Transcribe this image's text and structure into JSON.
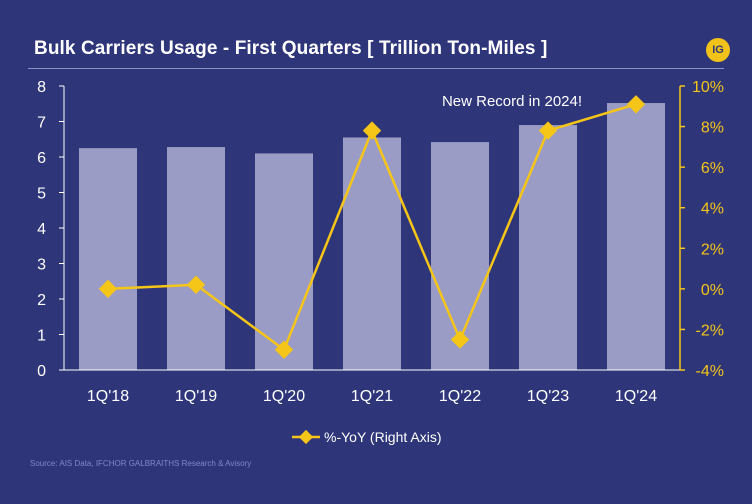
{
  "chart_data": {
    "type": "bar",
    "title": "Bulk Carriers Usage - First Quarters [ Trillion Ton-Miles ]",
    "categories": [
      "1Q'18",
      "1Q'19",
      "1Q'20",
      "1Q'21",
      "1Q'22",
      "1Q'23",
      "1Q'24"
    ],
    "series": [
      {
        "kind": "bar",
        "axis": "left",
        "values": [
          6.25,
          6.28,
          6.1,
          6.55,
          6.42,
          6.9,
          7.52
        ],
        "color": "#9a9cc6"
      },
      {
        "kind": "line",
        "axis": "right",
        "name": "%-YoY (Right Axis)",
        "values": [
          0.0,
          0.2,
          -3.0,
          7.8,
          -2.5,
          7.8,
          9.1
        ],
        "color": "#f5c518"
      }
    ],
    "y_left": {
      "min": 0,
      "max": 8,
      "ticks": [
        "0",
        "1",
        "2",
        "3",
        "4",
        "5",
        "6",
        "7",
        "8"
      ]
    },
    "y_right": {
      "min": -4,
      "max": 10,
      "ticks": [
        "-4%",
        "-2%",
        "0%",
        "2%",
        "4%",
        "6%",
        "8%",
        "10%"
      ]
    },
    "grid": false,
    "legend": "bottom-center",
    "annotation": "New Record in 2024!"
  },
  "logo_text": "IG",
  "source": "Source: AIS Data, IFCHOR GALBRAITHS Research & Avisory",
  "colors": {
    "background": "#2e3579",
    "bars": "#9a9cc6",
    "line": "#f5c518",
    "text": "#ffffff"
  }
}
